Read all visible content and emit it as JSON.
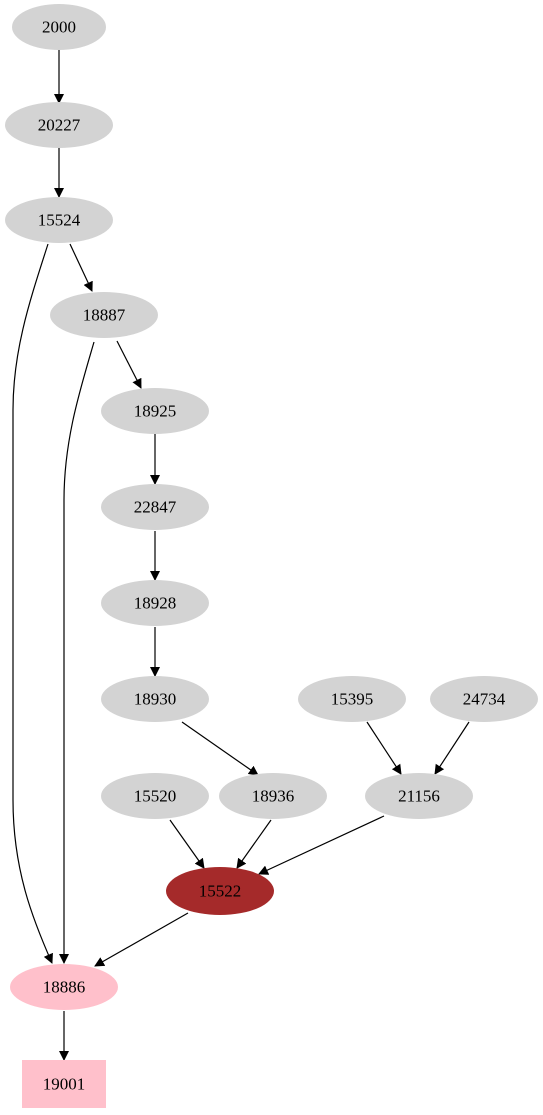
{
  "nodes": [
    {
      "label": "2000"
    },
    {
      "label": "20227"
    },
    {
      "label": "15524"
    },
    {
      "label": "18887"
    },
    {
      "label": "18925"
    },
    {
      "label": "22847"
    },
    {
      "label": "18928"
    },
    {
      "label": "18930"
    },
    {
      "label": "15395"
    },
    {
      "label": "24734"
    },
    {
      "label": "15520"
    },
    {
      "label": "18936"
    },
    {
      "label": "21156"
    },
    {
      "label": "15522"
    },
    {
      "label": "18886"
    },
    {
      "label": "19001"
    }
  ]
}
